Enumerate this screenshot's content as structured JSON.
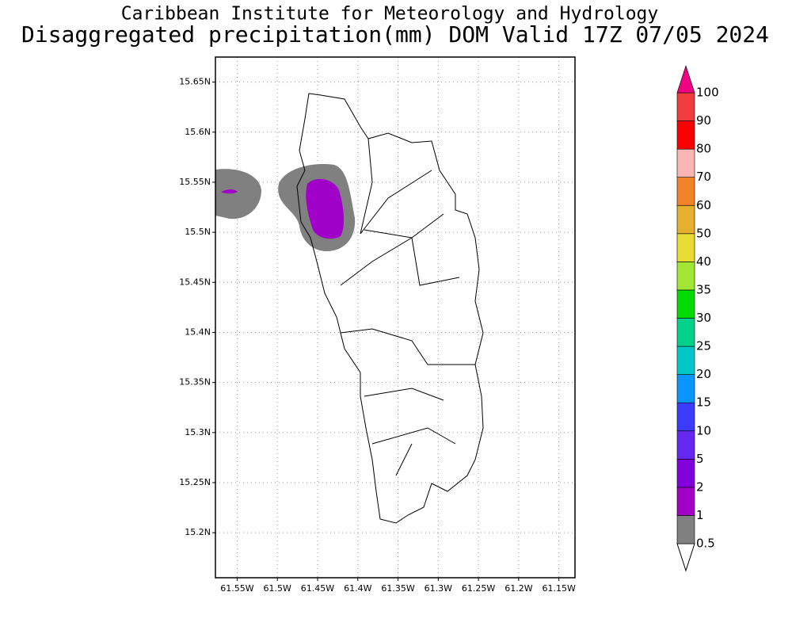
{
  "chart_data": {
    "type": "map",
    "title": "Caribbean Institute for Meteorology and Hydrology",
    "subtitle": "Disaggregated precipitation(mm) DOM Valid 17Z 07/05 2024",
    "xlim": [
      -61.577,
      -61.13
    ],
    "xticks": [
      {
        "value": -61.55,
        "label": "61.55W"
      },
      {
        "value": -61.5,
        "label": "61.5W"
      },
      {
        "value": -61.45,
        "label": "61.45W"
      },
      {
        "value": -61.4,
        "label": "61.4W"
      },
      {
        "value": -61.35,
        "label": "61.35W"
      },
      {
        "value": -61.3,
        "label": "61.3W"
      },
      {
        "value": -61.25,
        "label": "61.25W"
      },
      {
        "value": -61.2,
        "label": "61.2W"
      },
      {
        "value": -61.15,
        "label": "61.15W"
      }
    ],
    "ylim": [
      15.155,
      15.675
    ],
    "yticks": [
      {
        "value": 15.2,
        "label": "15.2N"
      },
      {
        "value": 15.25,
        "label": "15.25N"
      },
      {
        "value": 15.3,
        "label": "15.3N"
      },
      {
        "value": 15.35,
        "label": "15.35N"
      },
      {
        "value": 15.4,
        "label": "15.4N"
      },
      {
        "value": 15.45,
        "label": "15.45N"
      },
      {
        "value": 15.5,
        "label": "15.5N"
      },
      {
        "value": 15.55,
        "label": "15.55N"
      },
      {
        "value": 15.6,
        "label": "15.6N"
      },
      {
        "value": 15.65,
        "label": "15.65N"
      }
    ],
    "grid": true,
    "colorbar": {
      "levels": [
        0.5,
        1,
        2,
        5,
        10,
        15,
        20,
        25,
        30,
        35,
        40,
        50,
        60,
        70,
        80,
        90,
        100
      ],
      "colors": [
        "#ffffff",
        "#808080",
        "#a000c8",
        "#8200dc",
        "#6428f0",
        "#3c3cff",
        "#0a96ff",
        "#00c8c8",
        "#00d28c",
        "#00dc00",
        "#a0e632",
        "#e6dc32",
        "#e6af2d",
        "#f08228",
        "#fab4b4",
        "#fa0000",
        "#f03c3c",
        "#f00082"
      ]
    }
  }
}
